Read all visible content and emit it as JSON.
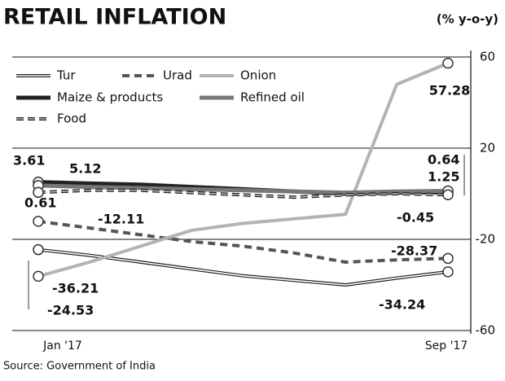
{
  "chart_data": {
    "type": "line",
    "title": "RETAIL INFLATION",
    "y_label": "(% y-o-y)",
    "source": "Source: Government of India",
    "categories": [
      "Jan '17",
      null,
      null,
      null,
      null,
      null,
      null,
      null,
      "Sep '17"
    ],
    "ylim": [
      -60,
      60
    ],
    "yticks": [
      60,
      20,
      -20,
      -60
    ],
    "grid": true,
    "series": [
      {
        "name": "Tur",
        "color": "#ffffff",
        "values": [
          -24.53,
          -27,
          -30,
          -33,
          -36,
          -38,
          -40,
          -37,
          -34.24
        ]
      },
      {
        "name": "Urad",
        "color": "#555555",
        "values": [
          -12.11,
          -15,
          -18,
          -21,
          -23,
          -26,
          -30,
          -29,
          -28.37
        ]
      },
      {
        "name": "Onion",
        "color": "#b3b3b3",
        "values": [
          -36.21,
          -30,
          -23,
          -16,
          -13,
          -11,
          -9,
          48,
          57.28
        ]
      },
      {
        "name": "Maize & products",
        "color": "#222222",
        "values": [
          5.12,
          4.5,
          4,
          3,
          2,
          1,
          0,
          0.5,
          0.64
        ]
      },
      {
        "name": "Refined oil",
        "color": "#777777",
        "values": [
          3.61,
          3,
          2.5,
          2,
          1.5,
          1,
          0.5,
          1,
          1.25
        ]
      },
      {
        "name": "Food",
        "color": "#444444",
        "values": [
          0.61,
          1.5,
          1.5,
          0.5,
          -0.5,
          -1.5,
          -0.5,
          0,
          -0.45
        ]
      }
    ]
  }
}
